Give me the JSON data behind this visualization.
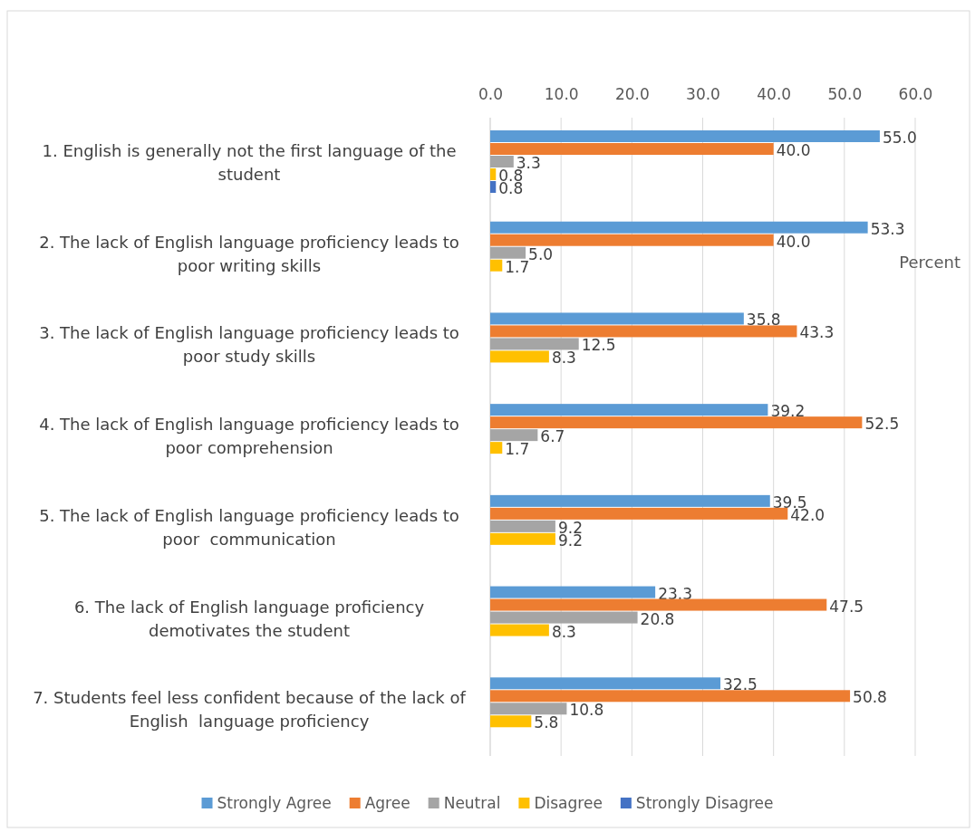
{
  "chart_data": {
    "type": "bar",
    "orientation": "horizontal",
    "xlabel": "Percent",
    "categories": [
      "1. English is generally not the first language of the student",
      "2. The lack of English language proficiency leads to poor writing skills",
      "3. The lack of English language proficiency leads to poor study skills",
      "4. The lack of English language proficiency leads to poor comprehension",
      "5. The lack of English language proficiency leads to poor  communication",
      "6. The lack of English language proficiency demotivates the student",
      "7. Students feel less confident because of the lack of English  language proficiency"
    ],
    "series": [
      {
        "name": "Strongly Agree",
        "color": "#5b9bd5",
        "values": [
          55.0,
          53.3,
          35.8,
          39.2,
          39.5,
          23.3,
          32.5
        ],
        "value_labels": [
          "55.0",
          "53.3",
          "35.8",
          "39.2",
          "39.5",
          "23.3",
          "32.5"
        ]
      },
      {
        "name": "Agree",
        "color": "#ed7d31",
        "values": [
          40.0,
          40.0,
          43.3,
          52.5,
          42.0,
          47.5,
          50.8
        ],
        "value_labels": [
          "40.0",
          "40.0",
          "43.3",
          "52.5",
          "42.0",
          "47.5",
          "50.8"
        ]
      },
      {
        "name": "Neutral",
        "color": "#a5a5a5",
        "values": [
          3.3,
          5.0,
          12.5,
          6.7,
          9.2,
          20.8,
          10.8
        ],
        "value_labels": [
          "3.3",
          "5.0",
          "12.5",
          "6.7",
          "9.2",
          "20.8",
          "10.8"
        ]
      },
      {
        "name": "Disagree",
        "color": "#ffc000",
        "values": [
          0.8,
          1.7,
          8.3,
          1.7,
          9.2,
          8.3,
          5.8
        ],
        "value_labels": [
          "0.8",
          "1.7",
          "8.3",
          "1.7",
          "9.2",
          "8.3",
          "5.8"
        ]
      },
      {
        "name": "Strongly Disagree",
        "color": "#4472c4",
        "values": [
          0.8,
          null,
          null,
          null,
          null,
          null,
          null
        ],
        "value_labels": [
          "0.8",
          null,
          null,
          null,
          null,
          null,
          null
        ]
      }
    ],
    "xlim": [
      0,
      60
    ],
    "xticks": [
      {
        "value": 0,
        "label": "0.0"
      },
      {
        "value": 10,
        "label": "10.0"
      },
      {
        "value": 20,
        "label": "20.0"
      },
      {
        "value": 30,
        "label": "30.0"
      },
      {
        "value": 40,
        "label": "40.0"
      },
      {
        "value": 50,
        "label": "50.0"
      },
      {
        "value": 60,
        "label": "60.0"
      }
    ],
    "grid": "x",
    "legend": "bottom"
  }
}
